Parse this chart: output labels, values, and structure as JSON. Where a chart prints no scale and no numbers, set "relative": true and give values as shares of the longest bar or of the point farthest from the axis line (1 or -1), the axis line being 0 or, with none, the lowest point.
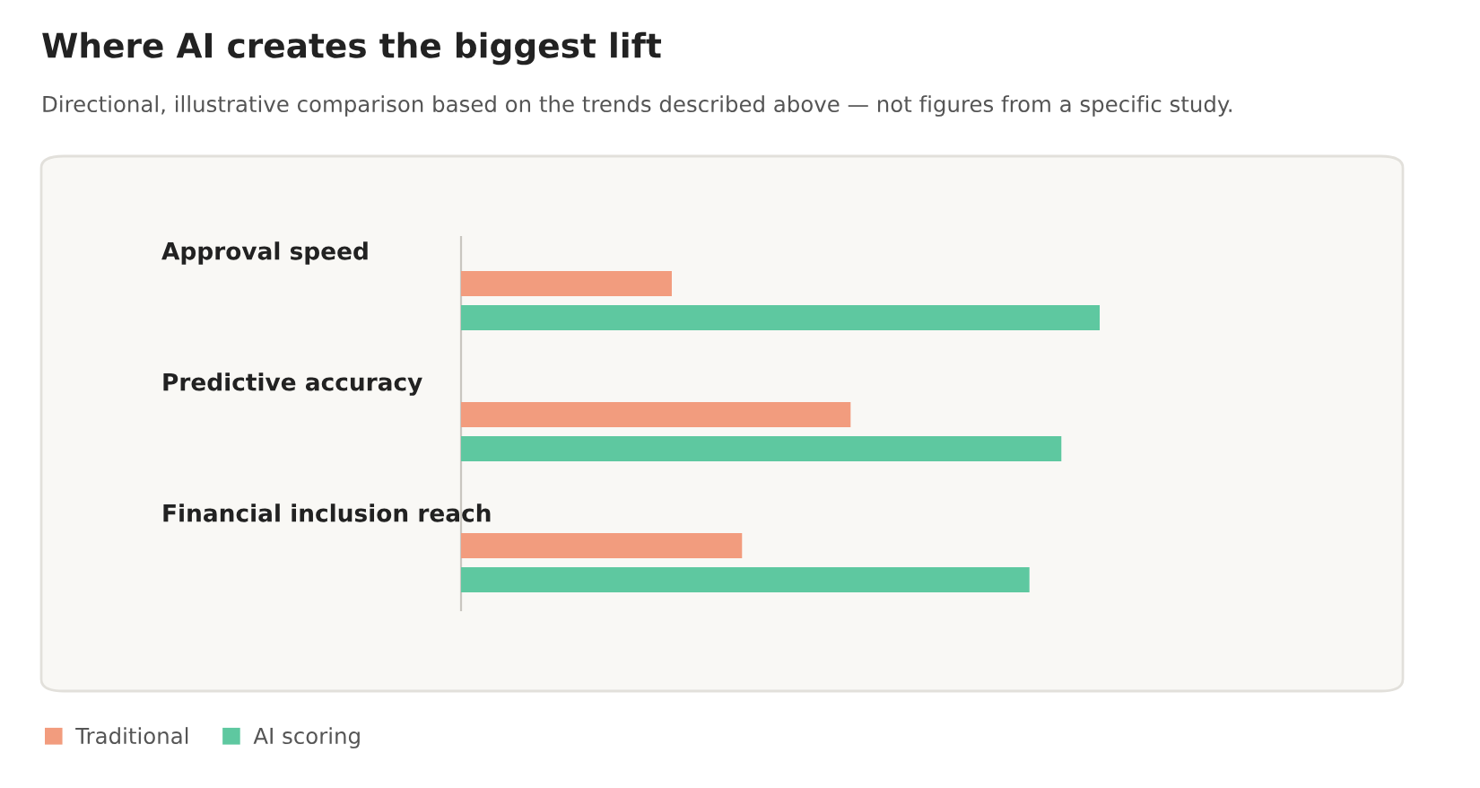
{
  "chart_data": {
    "type": "bar",
    "orientation": "horizontal",
    "relative": true,
    "title": "Where AI creates the biggest lift",
    "subtitle": "Directional, illustrative comparison based on the trends described above — not figures from a specific study.",
    "categories": [
      "Approval speed",
      "Predictive accuracy",
      "Financial inclusion reach"
    ],
    "series": [
      {
        "name": "Traditional",
        "color": "#f29c7e",
        "values": [
          0.33,
          0.61,
          0.44
        ]
      },
      {
        "name": "AI scoring",
        "color": "#5ec8a0",
        "values": [
          1,
          0.94,
          0.89
        ]
      }
    ],
    "legend": "bottom left"
  }
}
